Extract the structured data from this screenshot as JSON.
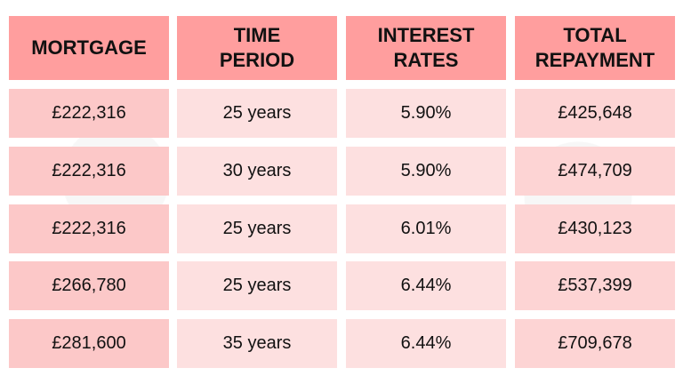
{
  "table": {
    "header": [
      "MORTGAGE",
      "TIME PERIOD",
      "INTEREST RATES",
      "TOTAL REPAYMENT"
    ],
    "rows": [
      [
        "£222,316",
        "25 years",
        "5.90%",
        "£425,648"
      ],
      [
        "£222,316",
        "30 years",
        "5.90%",
        "£474,709"
      ],
      [
        "£222,316",
        "25 years",
        "6.01%",
        "£430,123"
      ],
      [
        "£266,780",
        "25 years",
        "6.44%",
        "£537,399"
      ],
      [
        "£281,600",
        "35 years",
        "6.44%",
        "£709,678"
      ]
    ]
  }
}
